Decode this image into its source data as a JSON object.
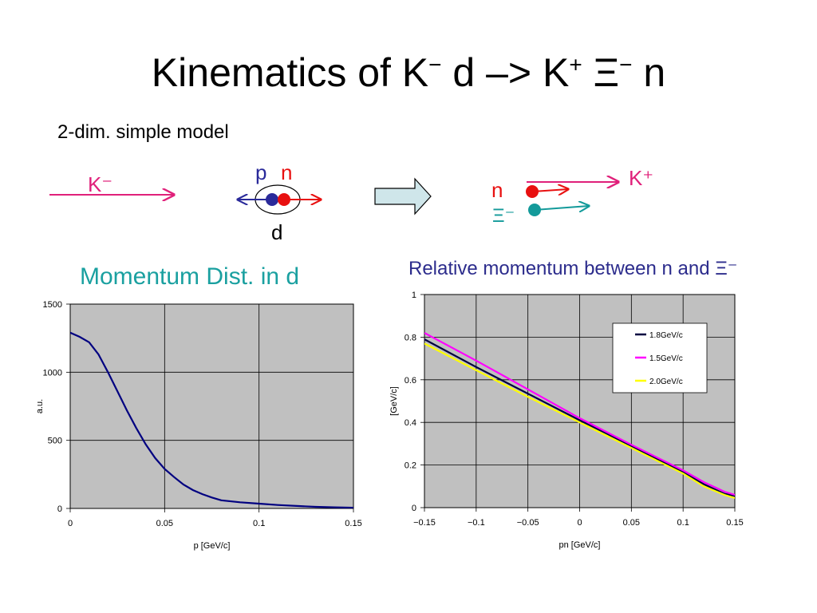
{
  "slide": {
    "title_main": "Kinematics of K",
    "title_sup1": "−",
    "title_mid": " d –> K",
    "title_sup2": "+",
    "title_xi": " Ξ",
    "title_sup3": "−",
    "title_end": " n",
    "subtitle": "2-dim. simple model"
  },
  "diagram": {
    "k_minus": "K⁻",
    "p": "p",
    "n_label": "n",
    "d_label": "d",
    "n_right": "n",
    "xi_right": "Ξ⁻",
    "k_plus": "K⁺",
    "colors": {
      "kaon": "#e0207a",
      "proton": "#2a2a9a",
      "neutron": "#e81010",
      "xi": "#139a9a",
      "arrow_fill": "#cfe6ea"
    }
  },
  "chart_data": [
    {
      "type": "line",
      "title": "Momentum Dist. in d",
      "xlabel": "p [GeV/c]",
      "ylabel": "a.u.",
      "xlim": [
        0,
        0.15
      ],
      "ylim": [
        0,
        1500
      ],
      "xticks": [
        "0",
        "0.05",
        "0.1",
        "0.15"
      ],
      "yticks": [
        "0",
        "500",
        "1000",
        "1500"
      ],
      "grid": true,
      "series": [
        {
          "color": "#000080",
          "x": [
            0,
            0.005,
            0.01,
            0.015,
            0.02,
            0.025,
            0.03,
            0.035,
            0.04,
            0.045,
            0.05,
            0.055,
            0.06,
            0.065,
            0.07,
            0.075,
            0.08,
            0.09,
            0.1,
            0.11,
            0.12,
            0.13,
            0.14,
            0.15
          ],
          "y": [
            1290,
            1260,
            1220,
            1130,
            1000,
            860,
            720,
            590,
            470,
            370,
            290,
            230,
            175,
            135,
            105,
            80,
            60,
            45,
            35,
            25,
            18,
            12,
            8,
            5
          ]
        }
      ]
    },
    {
      "type": "line",
      "title": "Relative momentum between n and Ξ⁻",
      "xlabel": "pn [GeV/c]",
      "ylabel": "[GeV/c]",
      "xlim": [
        -0.15,
        0.15
      ],
      "ylim": [
        0,
        1
      ],
      "xticks": [
        "−0.15",
        "−0.1",
        "−0.05",
        "0",
        "0.05",
        "0.1",
        "0.15"
      ],
      "yticks": [
        "0",
        "0.2",
        "0.4",
        "0.6",
        "0.8",
        "1"
      ],
      "grid": true,
      "legend": "top-right",
      "series": [
        {
          "name": "1.8GeV/c",
          "color": "#000040",
          "x": [
            -0.15,
            -0.1,
            -0.05,
            0,
            0.05,
            0.1,
            0.12,
            0.14,
            0.15
          ],
          "y": [
            0.79,
            0.66,
            0.535,
            0.41,
            0.29,
            0.165,
            0.11,
            0.065,
            0.055
          ]
        },
        {
          "name": "1.5GeV/c",
          "color": "#ff00ff",
          "x": [
            -0.15,
            -0.1,
            -0.05,
            0,
            0.05,
            0.1,
            0.12,
            0.14,
            0.15
          ],
          "y": [
            0.82,
            0.69,
            0.555,
            0.42,
            0.295,
            0.175,
            0.12,
            0.075,
            0.06
          ]
        },
        {
          "name": "2.0GeV/c",
          "color": "#ffff00",
          "x": [
            -0.15,
            -0.1,
            -0.05,
            0,
            0.05,
            0.1,
            0.12,
            0.14,
            0.15
          ],
          "y": [
            0.77,
            0.645,
            0.52,
            0.4,
            0.28,
            0.16,
            0.1,
            0.06,
            0.045
          ]
        }
      ]
    }
  ]
}
